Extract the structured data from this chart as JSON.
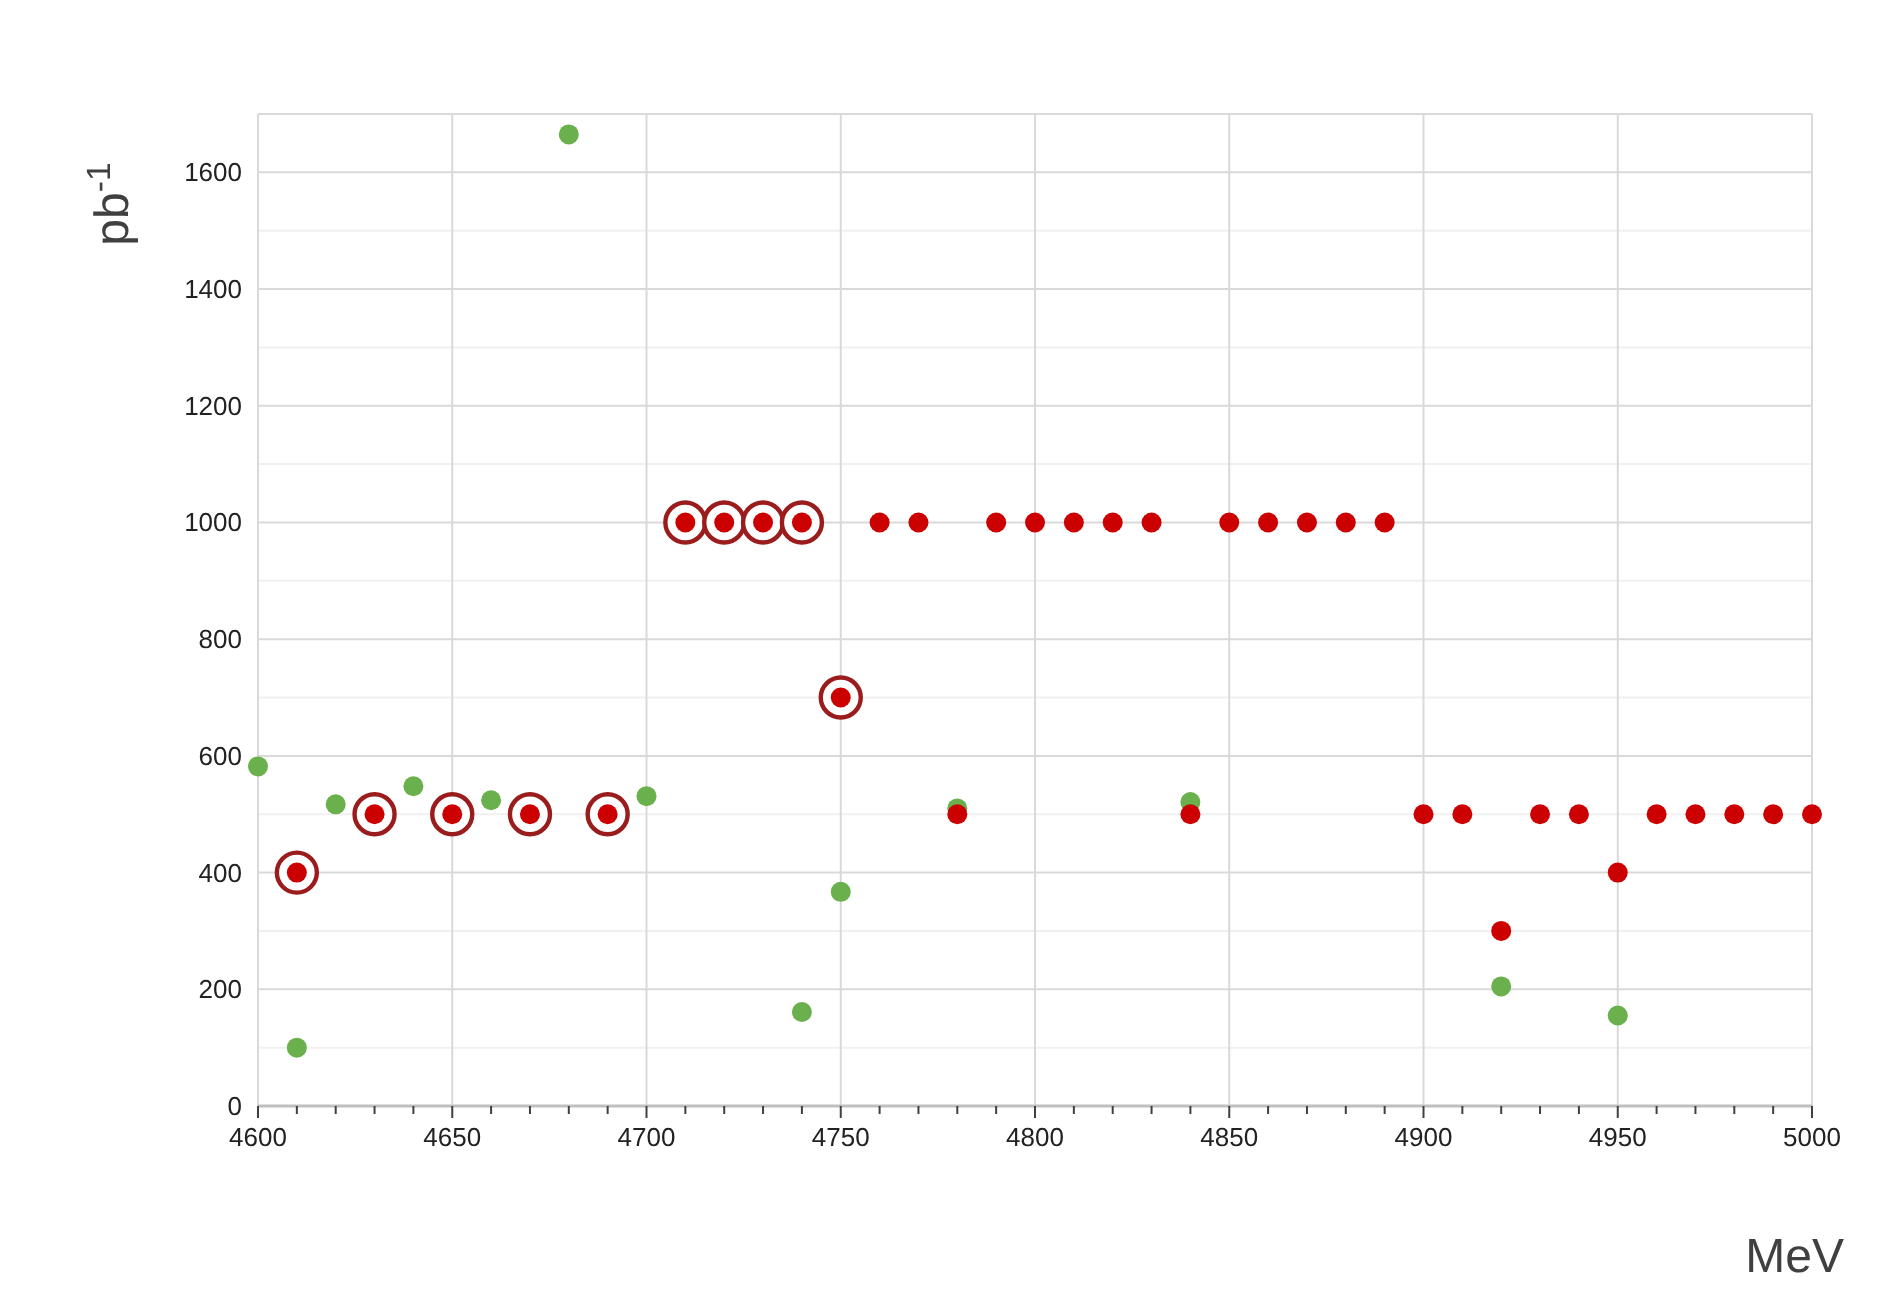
{
  "chart_data": {
    "type": "scatter",
    "xlabel": "MeV",
    "ylabel": "pb$^{-1}$",
    "xlim": [
      4600,
      5000
    ],
    "ylim": [
      0,
      1700
    ],
    "xticks": [
      4600,
      4650,
      4700,
      4750,
      4800,
      4850,
      4900,
      4950,
      5000
    ],
    "yticks": [
      0,
      200,
      400,
      600,
      800,
      1000,
      1200,
      1400,
      1600
    ],
    "grid": true,
    "marker": "circle",
    "series": [
      {
        "color": "#6ab04c",
        "x": [
          4600,
          4610,
          4620,
          4640,
          4660,
          4680,
          4700,
          4740,
          4750,
          4780,
          4840,
          4920,
          4950
        ],
        "values": [
          582,
          100,
          517,
          548,
          524,
          1665,
          531,
          161,
          367,
          510,
          521,
          205,
          155
        ]
      },
      {
        "color": "#cc0000",
        "x": [
          4760,
          4770,
          4790,
          4800,
          4810,
          4820,
          4830,
          4850,
          4860,
          4870,
          4880,
          4890,
          4780,
          4840,
          4900,
          4910,
          4920,
          4930,
          4940,
          4950,
          4960,
          4970,
          4980,
          4990,
          5000
        ],
        "values": [
          1000,
          1000,
          1000,
          1000,
          1000,
          1000,
          1000,
          1000,
          1000,
          1000,
          1000,
          1000,
          500,
          500,
          500,
          500,
          300,
          500,
          500,
          400,
          500,
          500,
          500,
          500,
          500
        ]
      },
      {
        "color": "#cc0000",
        "x": [
          4610,
          4630,
          4650,
          4670,
          4690,
          4710,
          4720,
          4730,
          4740,
          4750
        ],
        "values": [
          400,
          500,
          500,
          500,
          500,
          1000,
          1000,
          1000,
          1000,
          700
        ]
      }
    ]
  }
}
